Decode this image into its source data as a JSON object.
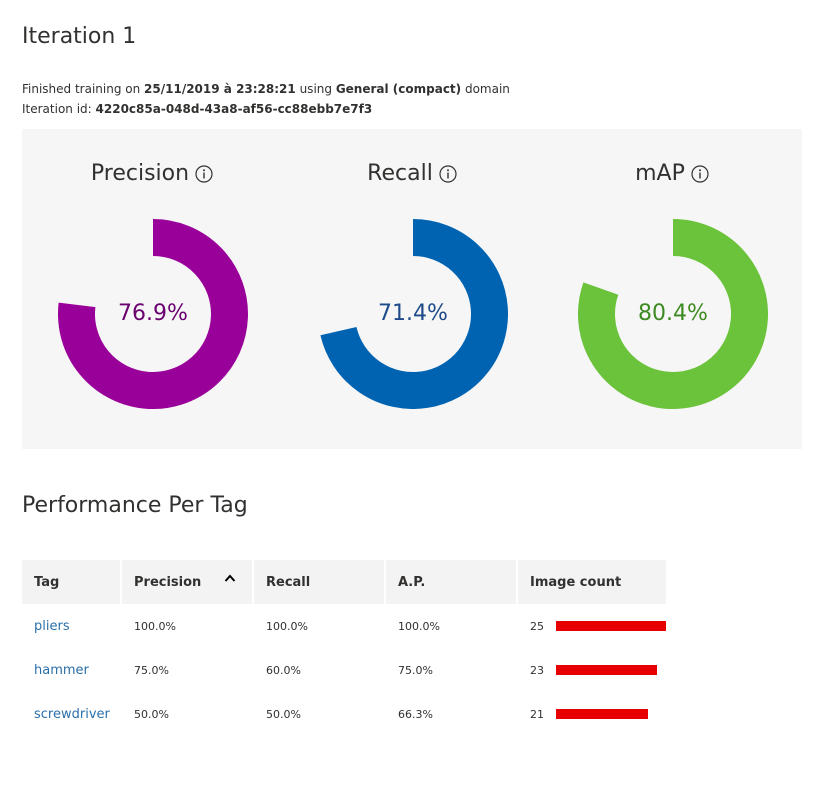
{
  "header": {
    "title": "Iteration 1",
    "info_prefix": "Finished training on ",
    "trained_on": "25/11/2019 à 23:28:21",
    "info_middle": " using ",
    "domain": "General (compact)",
    "info_suffix": " domain",
    "iteration_id_label": "Iteration id: ",
    "iteration_id": "4220c85a-048d-43a8-af56-cc88ebb7e7f3"
  },
  "metrics": [
    {
      "label": "Precision",
      "value": "76.9%",
      "fraction": 0.769,
      "color": "#990099",
      "text_color": "#6b0070",
      "icon": "info-icon"
    },
    {
      "label": "Recall",
      "value": "71.4%",
      "fraction": 0.714,
      "color": "#0063b1",
      "text_color": "#1f4a8a",
      "icon": "info-icon"
    },
    {
      "label": "mAP",
      "value": "80.4%",
      "fraction": 0.804,
      "color": "#6bc23b",
      "text_color": "#3d8a20",
      "icon": "info-icon"
    }
  ],
  "performance": {
    "title": "Performance Per Tag",
    "headers": {
      "tag": "Tag",
      "precision": "Precision",
      "recall": "Recall",
      "ap": "A.P.",
      "image_count": "Image count"
    },
    "sort_icon": "chevron-up-icon",
    "bar_color": "#e60000",
    "max_count": 25,
    "rows": [
      {
        "tag": "pliers",
        "precision": "100.0%",
        "recall": "100.0%",
        "ap": "100.0%",
        "image_count": 25
      },
      {
        "tag": "hammer",
        "precision": "75.0%",
        "recall": "60.0%",
        "ap": "75.0%",
        "image_count": 23
      },
      {
        "tag": "screwdriver",
        "precision": "50.0%",
        "recall": "50.0%",
        "ap": "66.3%",
        "image_count": 21
      }
    ]
  }
}
